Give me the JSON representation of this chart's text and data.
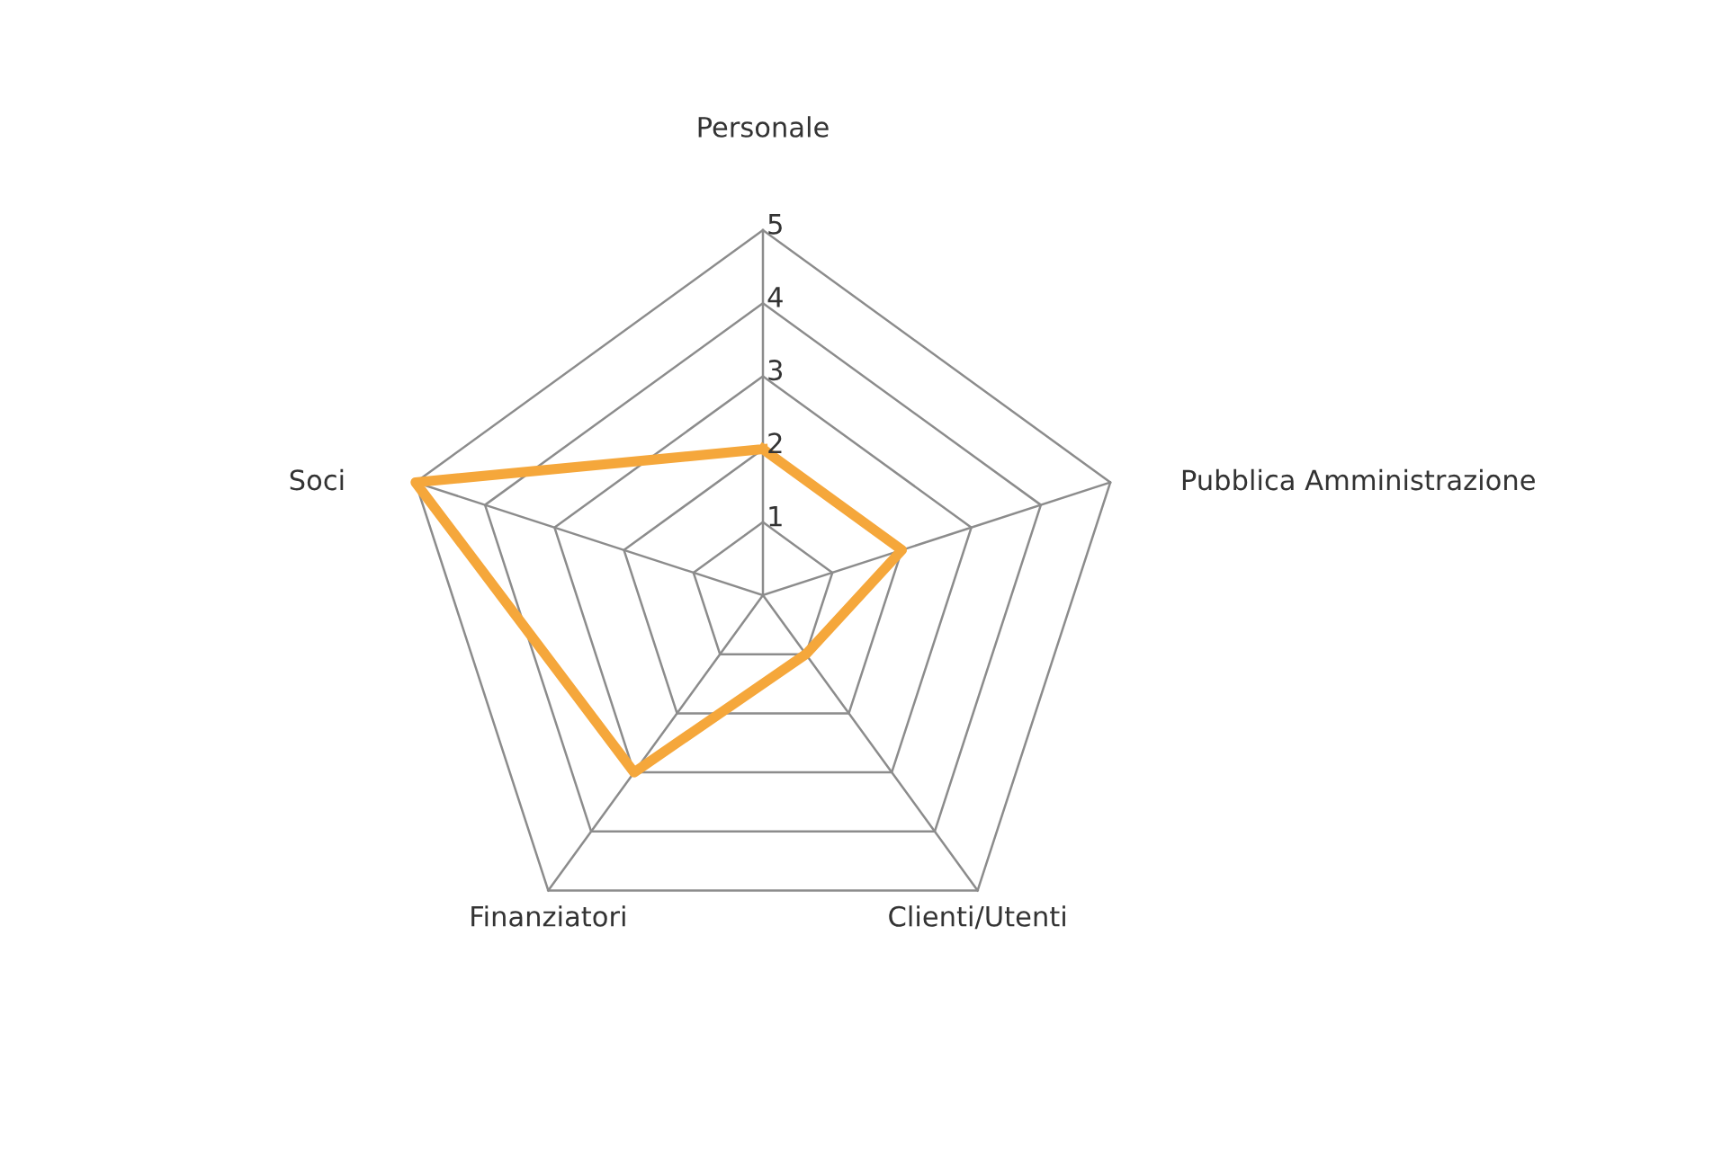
{
  "chart_data": {
    "type": "radar",
    "categories": [
      "Personale",
      "Pubblica Amministrazione",
      "Clienti/Utenti",
      "Finanziatori",
      "Soci"
    ],
    "series": [
      {
        "color": "#f5a73b",
        "values": [
          2,
          2,
          1,
          3,
          5
        ]
      }
    ],
    "ylim": [
      0,
      5
    ],
    "yticks": [
      1,
      2,
      3,
      4,
      5
    ],
    "grid": true,
    "marker": "none",
    "line_style": "solid"
  }
}
